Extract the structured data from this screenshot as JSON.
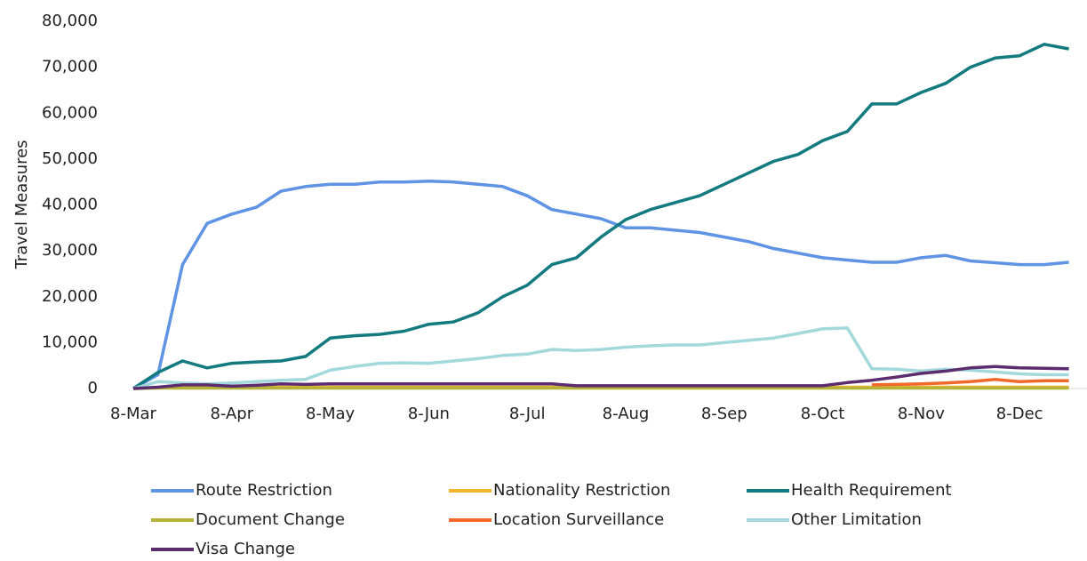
{
  "chart_data": {
    "type": "line",
    "y_label": "Travel Measures",
    "categories": [
      "8-Mar",
      null,
      null,
      null,
      "8-Apr",
      null,
      null,
      null,
      "8-May",
      null,
      null,
      null,
      "8-Jun",
      null,
      null,
      null,
      "8-Jul",
      null,
      null,
      null,
      "8-Aug",
      null,
      null,
      null,
      "8-Sep",
      null,
      null,
      null,
      "8-Oct",
      null,
      null,
      null,
      "8-Nov",
      null,
      null,
      null,
      "8-Dec",
      null,
      null
    ],
    "ylim": [
      0,
      80000
    ],
    "yticks": [
      0,
      {
        "value": 10000,
        "label": "10,000"
      },
      {
        "value": 20000,
        "label": "20,000"
      },
      {
        "value": 30000,
        "label": "30,000"
      },
      {
        "value": 40000,
        "label": "40,000"
      },
      {
        "value": 50000,
        "label": "50,000"
      },
      {
        "value": 60000,
        "label": "60,000"
      },
      {
        "value": 70000,
        "label": "70,000"
      },
      {
        "value": 80000,
        "label": "80,000"
      }
    ],
    "grid": false,
    "legend": "bottom",
    "series": [
      {
        "name": "Route Restriction",
        "color": "#5f93e3",
        "values": [
          0,
          3000,
          27000,
          36000,
          38000,
          39500,
          43000,
          44000,
          44500,
          44500,
          45000,
          45000,
          45200,
          45000,
          44500,
          44000,
          42000,
          39000,
          38000,
          37000,
          35000,
          35000,
          34500,
          34000,
          33000,
          32000,
          30500,
          29500,
          28500,
          28000,
          27500,
          27500,
          28500,
          29000,
          27800,
          27400,
          27000,
          27000,
          27500
        ]
      },
      {
        "name": "Nationality Restriction",
        "color": "#f5b52a",
        "values": [
          0,
          200,
          300,
          300,
          300,
          300,
          300,
          300,
          300,
          300,
          300,
          300,
          300,
          300,
          300,
          300,
          300,
          300,
          300,
          300,
          300,
          300,
          300,
          300,
          300,
          300,
          300,
          300,
          300,
          300,
          300,
          300,
          300,
          300,
          300,
          300,
          300,
          300,
          300
        ]
      },
      {
        "name": "Health Requirement",
        "color": "#137a80",
        "values": [
          0,
          3500,
          6000,
          4500,
          5500,
          5800,
          6000,
          7000,
          11000,
          11500,
          11800,
          12500,
          14000,
          14500,
          16500,
          20000,
          22500,
          27000,
          28500,
          33000,
          36800,
          39000,
          40500,
          42000,
          44500,
          47000,
          49500,
          51000,
          54000,
          56000,
          62000,
          62000,
          64500,
          66500,
          70000,
          72000,
          72500,
          75000,
          74000
        ]
      },
      {
        "name": "Document Change",
        "color": "#b5b43a",
        "values": [
          0,
          100,
          100,
          100,
          100,
          100,
          100,
          100,
          100,
          100,
          100,
          100,
          100,
          100,
          100,
          100,
          100,
          100,
          100,
          100,
          100,
          100,
          100,
          100,
          100,
          100,
          100,
          100,
          100,
          100,
          100,
          100,
          100,
          100,
          100,
          100,
          100,
          100,
          100
        ]
      },
      {
        "name": "Location Surveillance",
        "color": "#f0692a",
        "values": [
          null,
          null,
          null,
          null,
          null,
          null,
          null,
          null,
          null,
          null,
          null,
          null,
          null,
          null,
          null,
          null,
          null,
          null,
          null,
          null,
          null,
          null,
          null,
          null,
          null,
          null,
          null,
          null,
          null,
          null,
          800,
          900,
          1000,
          1200,
          1500,
          2000,
          1500,
          1700,
          1700
        ]
      },
      {
        "name": "Other Limitation",
        "color": "#a3d9db",
        "values": [
          0,
          1500,
          1200,
          1000,
          1200,
          1500,
          1800,
          2000,
          4000,
          4800,
          5500,
          5600,
          5500,
          6000,
          6500,
          7200,
          7500,
          8500,
          8300,
          8500,
          9000,
          9300,
          9500,
          9500,
          10000,
          10500,
          11000,
          12000,
          13000,
          13200,
          4300,
          4200,
          3800,
          4200,
          4000,
          3600,
          3200,
          3000,
          3000
        ]
      },
      {
        "name": "Visa Change",
        "color": "#5c2d6e",
        "values": [
          0,
          300,
          800,
          800,
          500,
          700,
          1000,
          900,
          1000,
          1000,
          1000,
          1000,
          1000,
          1000,
          1000,
          1000,
          1000,
          1000,
          600,
          600,
          600,
          600,
          600,
          600,
          600,
          600,
          600,
          600,
          600,
          1300,
          1800,
          2500,
          3300,
          3800,
          4500,
          4800,
          4500,
          4400,
          4300
        ]
      }
    ]
  }
}
